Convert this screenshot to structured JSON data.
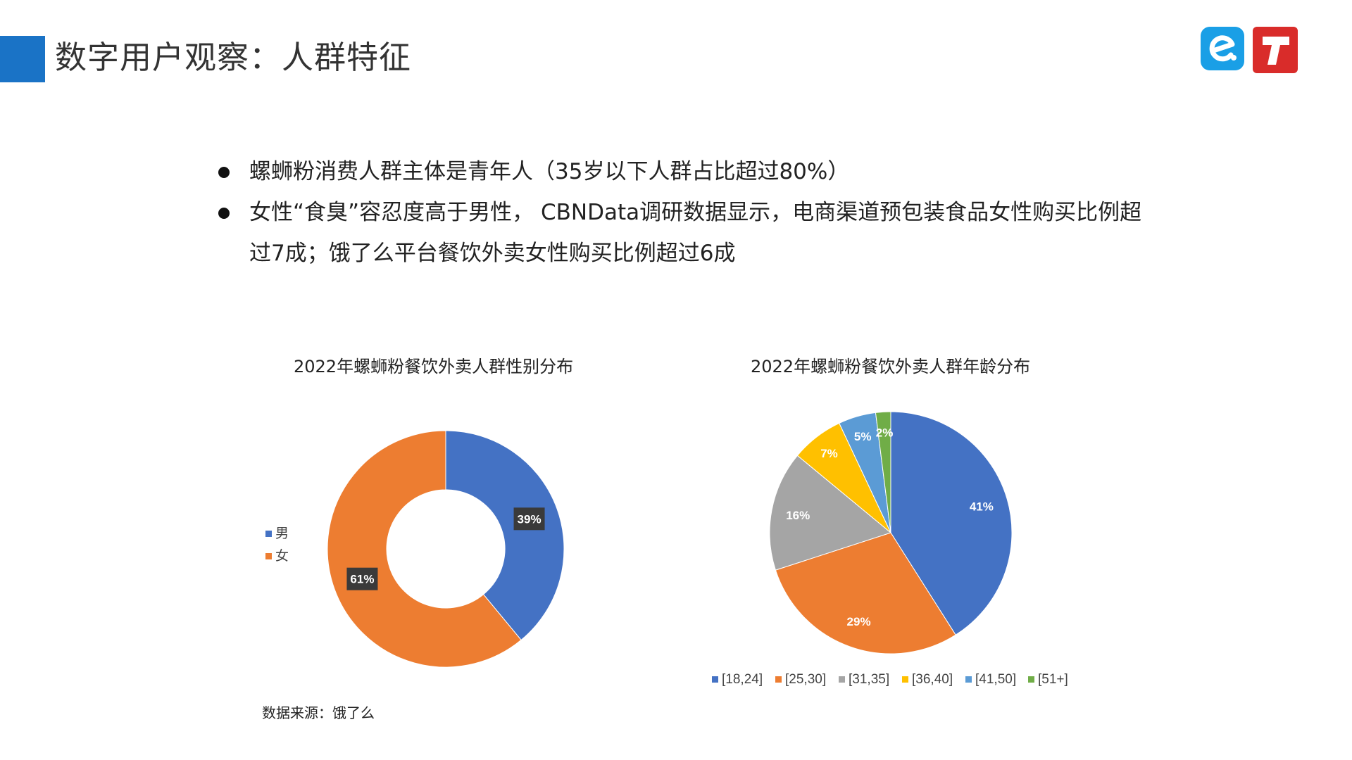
{
  "header": {
    "title": "数字用户观察：人群特征",
    "accent_color": "#1a73c6",
    "logos": [
      {
        "icon": "eleme-logo-icon",
        "glyph": "e",
        "color": "#1a9fe6"
      },
      {
        "icon": "tmall-logo-icon",
        "glyph": "T",
        "color": "#d92c2a"
      }
    ]
  },
  "bullets": [
    "螺蛳粉消费人群主体是青年人（35岁以下人群占比超过80%）",
    "女性“食臭”容忍度高于男性， CBNData调研数据显示，电商渠道预包装食品女性购买比例超过7成；饿了么平台餐饮外卖女性购买比例超过6成"
  ],
  "chart_data": [
    {
      "type": "pie",
      "variant": "donut",
      "title": "2022年螺蛳粉餐饮外卖人群性别分布",
      "categories": [
        "男",
        "女"
      ],
      "values": [
        39,
        61
      ],
      "labels": [
        "39%",
        "61%"
      ],
      "colors": [
        "#4472c4",
        "#ed7d31"
      ],
      "legend_position": "left"
    },
    {
      "type": "pie",
      "title": "2022年螺蛳粉餐饮外卖人群年龄分布",
      "categories": [
        "[18,24]",
        "[25,30]",
        "[31,35]",
        "[36,40]",
        "[41,50]",
        "[51+]"
      ],
      "values": [
        41,
        29,
        16,
        7,
        5,
        2
      ],
      "labels": [
        "41%",
        "29%",
        "16%",
        "7%",
        "5%",
        "2%"
      ],
      "colors": [
        "#4472c4",
        "#ed7d31",
        "#a5a5a5",
        "#ffc000",
        "#5b9bd5",
        "#70ad47"
      ],
      "legend_position": "bottom"
    }
  ],
  "source_note": "数据来源：饿了么"
}
